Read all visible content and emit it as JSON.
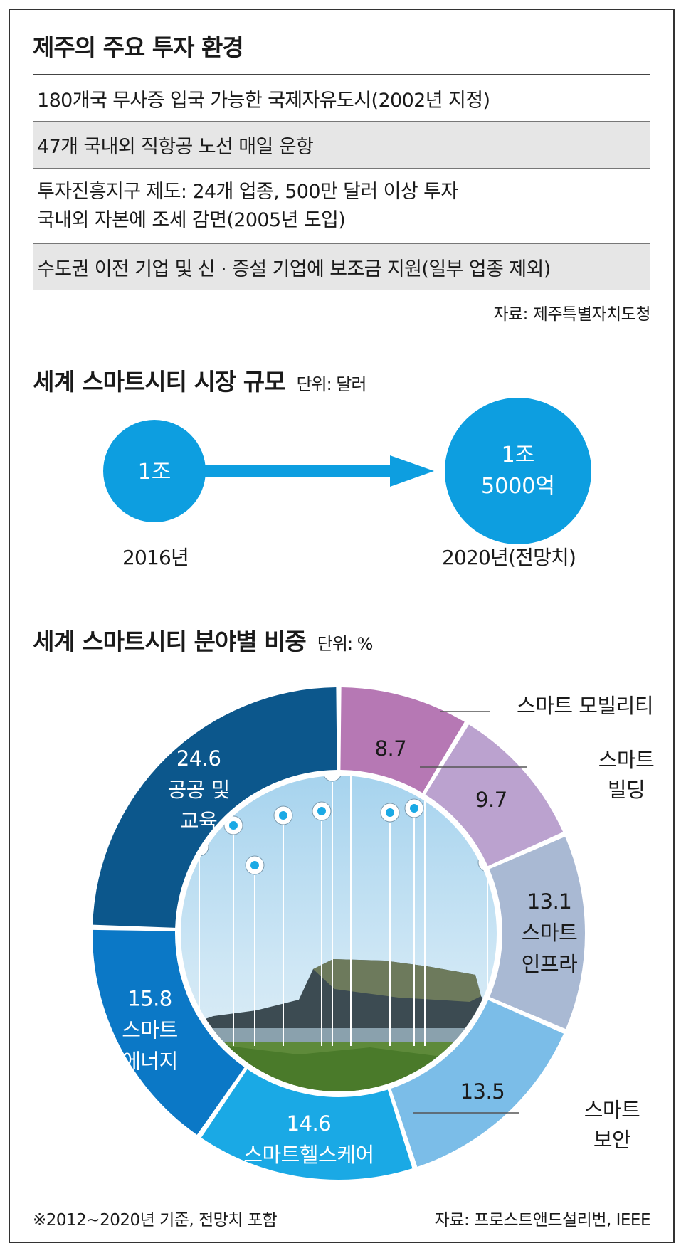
{
  "section1": {
    "title": "제주의 주요 투자 환경",
    "rows": [
      {
        "lines": [
          "180개국 무사증 입국 가능한 국제자유도시(2002년 지정)"
        ]
      },
      {
        "lines": [
          "47개 국내외 직항공 노선 매일 운항"
        ]
      },
      {
        "lines": [
          "투자진흥지구 제도: 24개 업종, 500만 달러 이상 투자",
          "국내외 자본에 조세 감면(2005년 도입)"
        ]
      },
      {
        "lines": [
          "수도권 이전 기업 및 신 · 증설 기업에 보조금 지원(일부 업종 제외)"
        ]
      }
    ],
    "source": "자료: 제주특별자치도청"
  },
  "section2": {
    "title": "세계 스마트시티 시장 규모",
    "unit": "단위: 달러",
    "start": {
      "value_line1": "1조",
      "year": "2016년"
    },
    "end": {
      "value_line1": "1조",
      "value_line2": "5000억",
      "year": "2020년(전망치)"
    }
  },
  "section3": {
    "title": "세계 스마트시티 분야별 비중",
    "unit": "단위: %",
    "note": "※2012~2020년 기준, 전망치 포함",
    "source": "자료: 프로스트앤드설리번, IEEE"
  },
  "colors": {
    "market_blue": "#0d9ee0",
    "mobility": "#b678b4",
    "building": "#bba2cf",
    "infra": "#a9b9d3",
    "security": "#7bbde8",
    "healthcare": "#1aa9e5",
    "energy": "#0b78c6",
    "public": "#0c578c"
  },
  "chart_data": [
    {
      "type": "bar",
      "title": "세계 스마트시티 시장 규모",
      "unit": "단위: 달러",
      "categories": [
        "2016년",
        "2020년(전망치)"
      ],
      "values": [
        10000,
        15000
      ],
      "value_labels": [
        "1조",
        "1조 5000억"
      ],
      "value_unit": "억 달러"
    },
    {
      "type": "pie",
      "title": "세계 스마트시티 분야별 비중",
      "unit": "단위: %",
      "slices": [
        {
          "label_lines": [
            "스마트 모빌리티"
          ],
          "value": 8.7,
          "value_label": "8.7",
          "color": "#b678b4",
          "label_outside": true
        },
        {
          "label_lines": [
            "스마트",
            "빌딩"
          ],
          "value": 9.7,
          "value_label": "9.7",
          "color": "#bba2cf",
          "label_outside": true
        },
        {
          "label_lines": [
            "스마트",
            "인프라"
          ],
          "value": 13.1,
          "value_label": "13.1",
          "color": "#a9b9d3",
          "label_outside": false
        },
        {
          "label_lines": [
            "스마트",
            "보안"
          ],
          "value": 13.5,
          "value_label": "13.5",
          "color": "#7bbde8",
          "label_outside": true
        },
        {
          "label_lines": [
            "스마트헬스케어"
          ],
          "value": 14.6,
          "value_label": "14.6",
          "color": "#1aa9e5",
          "label_outside": false
        },
        {
          "label_lines": [
            "스마트",
            "에너지"
          ],
          "value": 15.8,
          "value_label": "15.8",
          "color": "#0b78c6",
          "label_outside": false
        },
        {
          "label_lines": [
            "공공 및",
            "교육"
          ],
          "value": 24.6,
          "value_label": "24.6",
          "color": "#0c578c",
          "label_outside": false
        }
      ]
    }
  ]
}
